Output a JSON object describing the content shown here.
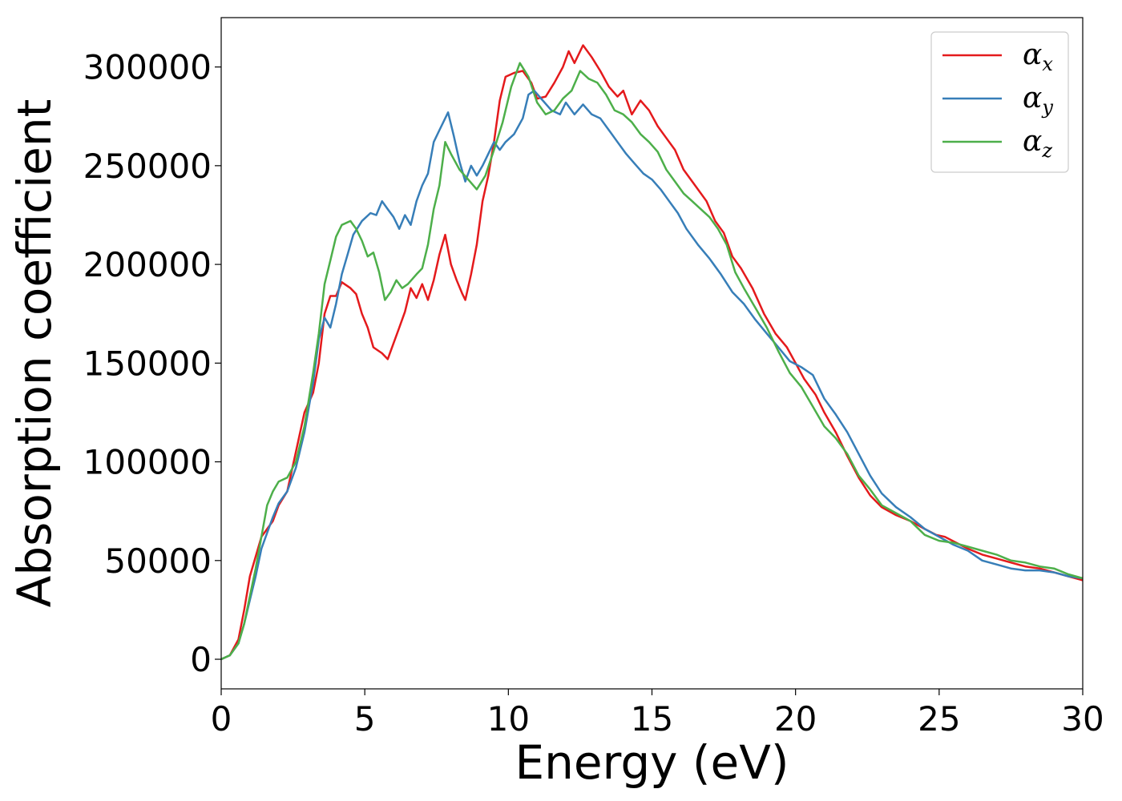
{
  "chart_data": {
    "type": "line",
    "xlabel": "Energy (eV)",
    "ylabel": "Absorption coefficient",
    "xlim": [
      0,
      30
    ],
    "ylim": [
      -15000,
      325000
    ],
    "xticks": [
      0,
      5,
      10,
      15,
      20,
      25,
      30
    ],
    "xtick_labels": [
      "0",
      "5",
      "10",
      "15",
      "20",
      "25",
      "30"
    ],
    "yticks": [
      0,
      50000,
      100000,
      150000,
      200000,
      250000,
      300000
    ],
    "ytick_labels": [
      "0",
      "50000",
      "100000",
      "150000",
      "200000",
      "250000",
      "300000"
    ],
    "grid": false,
    "legend_position": "top-right",
    "series": [
      {
        "name": "x",
        "color": "#e41a1c",
        "points": [
          [
            0,
            0
          ],
          [
            0.3,
            2000
          ],
          [
            0.6,
            10000
          ],
          [
            0.8,
            25000
          ],
          [
            1.0,
            42000
          ],
          [
            1.2,
            52000
          ],
          [
            1.4,
            62000
          ],
          [
            1.6,
            66000
          ],
          [
            1.8,
            70000
          ],
          [
            2.0,
            78000
          ],
          [
            2.3,
            85000
          ],
          [
            2.6,
            105000
          ],
          [
            2.9,
            125000
          ],
          [
            3.2,
            135000
          ],
          [
            3.4,
            150000
          ],
          [
            3.6,
            175000
          ],
          [
            3.8,
            184000
          ],
          [
            4.0,
            184000
          ],
          [
            4.2,
            191000
          ],
          [
            4.5,
            188000
          ],
          [
            4.7,
            185000
          ],
          [
            4.9,
            175000
          ],
          [
            5.1,
            168000
          ],
          [
            5.3,
            158000
          ],
          [
            5.6,
            155000
          ],
          [
            5.8,
            152000
          ],
          [
            6.0,
            160000
          ],
          [
            6.2,
            168000
          ],
          [
            6.4,
            176000
          ],
          [
            6.6,
            188000
          ],
          [
            6.8,
            183000
          ],
          [
            7.0,
            190000
          ],
          [
            7.2,
            182000
          ],
          [
            7.4,
            192000
          ],
          [
            7.6,
            205000
          ],
          [
            7.8,
            215000
          ],
          [
            8.0,
            200000
          ],
          [
            8.2,
            192000
          ],
          [
            8.4,
            185000
          ],
          [
            8.5,
            182000
          ],
          [
            8.7,
            195000
          ],
          [
            8.9,
            210000
          ],
          [
            9.1,
            232000
          ],
          [
            9.3,
            245000
          ],
          [
            9.5,
            262000
          ],
          [
            9.7,
            283000
          ],
          [
            9.9,
            295000
          ],
          [
            10.2,
            297000
          ],
          [
            10.5,
            298000
          ],
          [
            10.8,
            292000
          ],
          [
            11.0,
            284000
          ],
          [
            11.3,
            285000
          ],
          [
            11.6,
            292000
          ],
          [
            11.9,
            300000
          ],
          [
            12.1,
            308000
          ],
          [
            12.3,
            302000
          ],
          [
            12.6,
            311000
          ],
          [
            12.9,
            305000
          ],
          [
            13.2,
            298000
          ],
          [
            13.5,
            290000
          ],
          [
            13.8,
            285000
          ],
          [
            14.0,
            288000
          ],
          [
            14.3,
            276000
          ],
          [
            14.6,
            283000
          ],
          [
            14.9,
            278000
          ],
          [
            15.2,
            270000
          ],
          [
            15.5,
            264000
          ],
          [
            15.8,
            258000
          ],
          [
            16.1,
            248000
          ],
          [
            16.5,
            240000
          ],
          [
            16.9,
            232000
          ],
          [
            17.2,
            222000
          ],
          [
            17.5,
            216000
          ],
          [
            17.8,
            204000
          ],
          [
            18.1,
            198000
          ],
          [
            18.5,
            188000
          ],
          [
            18.9,
            175000
          ],
          [
            19.3,
            165000
          ],
          [
            19.7,
            158000
          ],
          [
            20.0,
            150000
          ],
          [
            20.3,
            142000
          ],
          [
            20.7,
            134000
          ],
          [
            21.0,
            125000
          ],
          [
            21.4,
            115000
          ],
          [
            21.8,
            103000
          ],
          [
            22.2,
            92000
          ],
          [
            22.6,
            83000
          ],
          [
            23.0,
            77000
          ],
          [
            23.5,
            73000
          ],
          [
            24.0,
            70000
          ],
          [
            24.5,
            66000
          ],
          [
            24.9,
            63000
          ],
          [
            25.2,
            62000
          ],
          [
            25.6,
            59000
          ],
          [
            26.0,
            56000
          ],
          [
            26.5,
            53000
          ],
          [
            27.0,
            51000
          ],
          [
            27.5,
            49000
          ],
          [
            28.0,
            47000
          ],
          [
            28.5,
            46000
          ],
          [
            29.0,
            44000
          ],
          [
            29.5,
            42000
          ],
          [
            30.0,
            40000
          ]
        ]
      },
      {
        "name": "y",
        "color": "#377eb8",
        "points": [
          [
            0,
            0
          ],
          [
            0.3,
            2000
          ],
          [
            0.6,
            8000
          ],
          [
            0.8,
            18000
          ],
          [
            1.0,
            30000
          ],
          [
            1.2,
            42000
          ],
          [
            1.4,
            56000
          ],
          [
            1.6,
            64000
          ],
          [
            1.8,
            72000
          ],
          [
            2.0,
            79000
          ],
          [
            2.3,
            85000
          ],
          [
            2.6,
            97000
          ],
          [
            2.9,
            115000
          ],
          [
            3.2,
            140000
          ],
          [
            3.4,
            162000
          ],
          [
            3.6,
            173000
          ],
          [
            3.8,
            168000
          ],
          [
            4.0,
            180000
          ],
          [
            4.2,
            195000
          ],
          [
            4.4,
            205000
          ],
          [
            4.6,
            215000
          ],
          [
            4.9,
            222000
          ],
          [
            5.2,
            226000
          ],
          [
            5.4,
            225000
          ],
          [
            5.6,
            232000
          ],
          [
            5.8,
            228000
          ],
          [
            6.0,
            224000
          ],
          [
            6.2,
            218000
          ],
          [
            6.4,
            225000
          ],
          [
            6.6,
            220000
          ],
          [
            6.8,
            232000
          ],
          [
            7.0,
            240000
          ],
          [
            7.2,
            246000
          ],
          [
            7.4,
            262000
          ],
          [
            7.6,
            268000
          ],
          [
            7.9,
            277000
          ],
          [
            8.1,
            265000
          ],
          [
            8.3,
            252000
          ],
          [
            8.5,
            242000
          ],
          [
            8.7,
            250000
          ],
          [
            8.9,
            245000
          ],
          [
            9.1,
            250000
          ],
          [
            9.3,
            256000
          ],
          [
            9.5,
            262000
          ],
          [
            9.7,
            258000
          ],
          [
            9.9,
            262000
          ],
          [
            10.2,
            266000
          ],
          [
            10.5,
            274000
          ],
          [
            10.7,
            286000
          ],
          [
            10.9,
            288000
          ],
          [
            11.2,
            283000
          ],
          [
            11.5,
            278000
          ],
          [
            11.8,
            276000
          ],
          [
            12.0,
            282000
          ],
          [
            12.3,
            276000
          ],
          [
            12.6,
            281000
          ],
          [
            12.9,
            276000
          ],
          [
            13.2,
            274000
          ],
          [
            13.5,
            268000
          ],
          [
            13.8,
            262000
          ],
          [
            14.1,
            256000
          ],
          [
            14.4,
            251000
          ],
          [
            14.7,
            246000
          ],
          [
            15.0,
            243000
          ],
          [
            15.3,
            238000
          ],
          [
            15.6,
            232000
          ],
          [
            15.9,
            226000
          ],
          [
            16.2,
            218000
          ],
          [
            16.6,
            210000
          ],
          [
            17.0,
            203000
          ],
          [
            17.4,
            195000
          ],
          [
            17.8,
            186000
          ],
          [
            18.2,
            180000
          ],
          [
            18.6,
            172000
          ],
          [
            19.0,
            165000
          ],
          [
            19.4,
            158000
          ],
          [
            19.8,
            151000
          ],
          [
            20.2,
            148000
          ],
          [
            20.6,
            144000
          ],
          [
            21.0,
            132000
          ],
          [
            21.4,
            124000
          ],
          [
            21.8,
            115000
          ],
          [
            22.2,
            104000
          ],
          [
            22.6,
            93000
          ],
          [
            23.0,
            84000
          ],
          [
            23.5,
            77000
          ],
          [
            24.0,
            72000
          ],
          [
            24.5,
            66000
          ],
          [
            25.0,
            62000
          ],
          [
            25.5,
            58000
          ],
          [
            26.0,
            55000
          ],
          [
            26.5,
            50000
          ],
          [
            27.0,
            48000
          ],
          [
            27.5,
            46000
          ],
          [
            28.0,
            45000
          ],
          [
            28.5,
            45000
          ],
          [
            29.0,
            44000
          ],
          [
            29.5,
            42000
          ],
          [
            30.0,
            41000
          ]
        ]
      },
      {
        "name": "z",
        "color": "#4daf4a",
        "points": [
          [
            0,
            0
          ],
          [
            0.3,
            2000
          ],
          [
            0.6,
            8000
          ],
          [
            0.8,
            18000
          ],
          [
            1.0,
            32000
          ],
          [
            1.2,
            46000
          ],
          [
            1.4,
            62000
          ],
          [
            1.6,
            78000
          ],
          [
            1.8,
            85000
          ],
          [
            2.0,
            90000
          ],
          [
            2.3,
            92000
          ],
          [
            2.6,
            100000
          ],
          [
            2.9,
            118000
          ],
          [
            3.2,
            145000
          ],
          [
            3.4,
            165000
          ],
          [
            3.6,
            190000
          ],
          [
            3.8,
            202000
          ],
          [
            4.0,
            214000
          ],
          [
            4.2,
            220000
          ],
          [
            4.5,
            222000
          ],
          [
            4.7,
            218000
          ],
          [
            4.9,
            212000
          ],
          [
            5.1,
            204000
          ],
          [
            5.3,
            206000
          ],
          [
            5.5,
            196000
          ],
          [
            5.7,
            182000
          ],
          [
            5.9,
            186000
          ],
          [
            6.1,
            192000
          ],
          [
            6.3,
            188000
          ],
          [
            6.5,
            190000
          ],
          [
            6.8,
            195000
          ],
          [
            7.0,
            198000
          ],
          [
            7.2,
            210000
          ],
          [
            7.4,
            228000
          ],
          [
            7.6,
            240000
          ],
          [
            7.8,
            262000
          ],
          [
            8.0,
            256000
          ],
          [
            8.3,
            248000
          ],
          [
            8.6,
            243000
          ],
          [
            8.9,
            238000
          ],
          [
            9.2,
            245000
          ],
          [
            9.5,
            258000
          ],
          [
            9.8,
            272000
          ],
          [
            10.1,
            290000
          ],
          [
            10.4,
            302000
          ],
          [
            10.7,
            295000
          ],
          [
            11.0,
            282000
          ],
          [
            11.3,
            276000
          ],
          [
            11.6,
            278000
          ],
          [
            11.9,
            284000
          ],
          [
            12.2,
            288000
          ],
          [
            12.5,
            298000
          ],
          [
            12.8,
            294000
          ],
          [
            13.1,
            292000
          ],
          [
            13.4,
            286000
          ],
          [
            13.7,
            278000
          ],
          [
            14.0,
            276000
          ],
          [
            14.3,
            272000
          ],
          [
            14.6,
            266000
          ],
          [
            14.9,
            262000
          ],
          [
            15.2,
            257000
          ],
          [
            15.5,
            248000
          ],
          [
            15.8,
            242000
          ],
          [
            16.1,
            236000
          ],
          [
            16.4,
            232000
          ],
          [
            16.7,
            228000
          ],
          [
            17.0,
            224000
          ],
          [
            17.3,
            218000
          ],
          [
            17.6,
            210000
          ],
          [
            17.9,
            196000
          ],
          [
            18.2,
            188000
          ],
          [
            18.6,
            178000
          ],
          [
            19.0,
            168000
          ],
          [
            19.4,
            156000
          ],
          [
            19.8,
            145000
          ],
          [
            20.2,
            138000
          ],
          [
            20.6,
            128000
          ],
          [
            21.0,
            118000
          ],
          [
            21.4,
            112000
          ],
          [
            21.8,
            104000
          ],
          [
            22.2,
            93000
          ],
          [
            22.6,
            86000
          ],
          [
            23.0,
            78000
          ],
          [
            23.5,
            74000
          ],
          [
            24.0,
            70000
          ],
          [
            24.5,
            63000
          ],
          [
            25.0,
            60000
          ],
          [
            25.5,
            59000
          ],
          [
            26.0,
            57000
          ],
          [
            26.5,
            55000
          ],
          [
            27.0,
            53000
          ],
          [
            27.5,
            50000
          ],
          [
            28.0,
            49000
          ],
          [
            28.5,
            47000
          ],
          [
            29.0,
            46000
          ],
          [
            29.5,
            43000
          ],
          [
            30.0,
            41000
          ]
        ]
      }
    ]
  }
}
